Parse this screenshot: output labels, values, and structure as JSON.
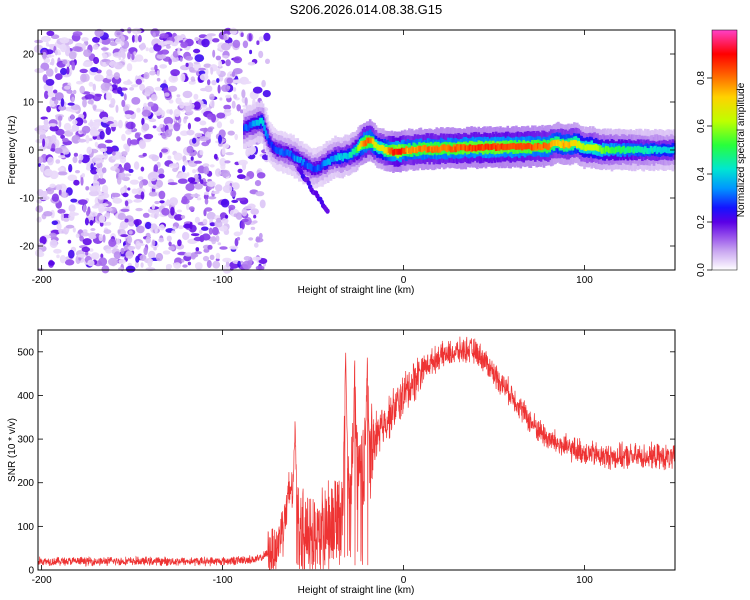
{
  "title": "S206.2026.014.08.38.G15",
  "colors": {
    "snr_line": "#ee3333",
    "spectrogram_scale": [
      "#ffffff",
      "#e8d8f8",
      "#c8a8f0",
      "#9040e8",
      "#5a00e8",
      "#1010ff",
      "#00a0ff",
      "#00e8d0",
      "#30ff30",
      "#c0ff00",
      "#ffd000",
      "#ff5000",
      "#ff0000",
      "#ff40c0"
    ]
  },
  "chart_data": [
    {
      "type": "heatmap",
      "name": "spectrogram",
      "xlabel": "Height of straight line (km)",
      "ylabel": "Frequency (Hz)",
      "xlim": [
        -202,
        150
      ],
      "ylim": [
        -25,
        25
      ],
      "xticks": [
        -200,
        -100,
        0,
        100
      ],
      "xtick_labels": [
        "-200",
        "-100",
        "0",
        "100"
      ],
      "yticks": [
        20,
        10,
        0,
        -10,
        -20
      ],
      "ytick_labels": [
        "20",
        "10",
        "0",
        "-10",
        "-20"
      ],
      "colorbar": {
        "label": "Normalized spectral amplitude",
        "range": [
          0,
          1
        ],
        "ticks": [
          0.0,
          0.2,
          0.4,
          0.6,
          0.8
        ],
        "tick_labels": [
          "0.0",
          "0.2",
          "0.4",
          "0.6",
          "0.8"
        ]
      },
      "ridge": {
        "description_points_x_km": [
          -88,
          -82,
          -78,
          -74,
          -70,
          -66,
          -62,
          -58,
          -54,
          -50,
          -46,
          -42,
          -38,
          -34,
          -30,
          -26,
          -22,
          -18,
          -14,
          -10,
          -6,
          -2,
          2,
          10,
          20,
          40,
          60,
          80,
          85,
          90,
          95,
          100,
          105,
          110,
          120,
          130,
          150
        ],
        "freq_hz": [
          4.5,
          5.5,
          6.0,
          1.5,
          0.0,
          -0.5,
          -1.0,
          -2.0,
          -3.0,
          -4.0,
          -3.5,
          -2.5,
          -1.5,
          -1.5,
          -1.0,
          0.0,
          1.5,
          2.0,
          0.5,
          0.0,
          -0.3,
          -0.3,
          0.0,
          0.2,
          0.3,
          0.5,
          0.6,
          0.8,
          1.5,
          1.0,
          1.5,
          0.5,
          0.5,
          0.0,
          0.0,
          0.0,
          0.0
        ],
        "peak_amplitude": [
          0.3,
          0.35,
          0.4,
          0.25,
          0.3,
          0.3,
          0.3,
          0.35,
          0.3,
          0.3,
          0.3,
          0.35,
          0.35,
          0.4,
          0.4,
          0.5,
          0.8,
          0.8,
          0.6,
          0.7,
          0.85,
          0.9,
          0.75,
          0.8,
          0.8,
          0.85,
          0.85,
          0.8,
          0.7,
          0.75,
          0.7,
          0.6,
          0.65,
          0.55,
          0.5,
          0.45,
          0.4
        ]
      },
      "noise_region_x_km": [
        -202,
        -75
      ]
    },
    {
      "type": "line",
      "name": "snr",
      "xlabel": "Height of straight line (km)",
      "ylabel": "SNR (10 * v/v)",
      "xlim": [
        -202,
        150
      ],
      "ylim": [
        0,
        550
      ],
      "xticks": [
        -200,
        -100,
        0,
        100
      ],
      "xtick_labels": [
        "-200",
        "-100",
        "0",
        "100"
      ],
      "yticks": [
        0,
        100,
        200,
        300,
        400,
        500
      ],
      "ytick_labels": [
        "0",
        "100",
        "200",
        "300",
        "400",
        "500"
      ],
      "series": [
        {
          "name": "SNR",
          "x": [
            -202,
            -150,
            -100,
            -80,
            -70,
            -64,
            -62,
            -60,
            -58,
            -55,
            -50,
            -45,
            -40,
            -35,
            -32,
            -30,
            -28,
            -25,
            -22,
            -20,
            -18,
            -15,
            -10,
            -5,
            0,
            5,
            10,
            20,
            30,
            35,
            40,
            45,
            50,
            60,
            70,
            80,
            90,
            100,
            110,
            120,
            130,
            140,
            150
          ],
          "y": [
            20,
            20,
            20,
            25,
            50,
            150,
            200,
            150,
            100,
            80,
            70,
            80,
            100,
            130,
            180,
            200,
            230,
            240,
            250,
            230,
            280,
            310,
            340,
            370,
            400,
            430,
            460,
            490,
            500,
            505,
            500,
            480,
            450,
            400,
            340,
            300,
            280,
            270,
            260,
            260,
            260,
            260,
            255
          ],
          "spikes": [
            {
              "x": -60,
              "y": 350
            },
            {
              "x": -32,
              "y": 530
            },
            {
              "x": -27,
              "y": 500
            },
            {
              "x": -20,
              "y": 535
            },
            {
              "x": -14,
              "y": 360
            }
          ],
          "noise_amplitude": [
            {
              "from": -202,
              "to": -75,
              "amp": 12
            },
            {
              "from": -75,
              "to": -60,
              "amp": 80
            },
            {
              "from": -60,
              "to": -15,
              "amp": 120
            },
            {
              "from": -15,
              "to": 10,
              "amp": 60
            },
            {
              "from": 10,
              "to": 150,
              "amp": 35
            }
          ]
        }
      ]
    }
  ]
}
